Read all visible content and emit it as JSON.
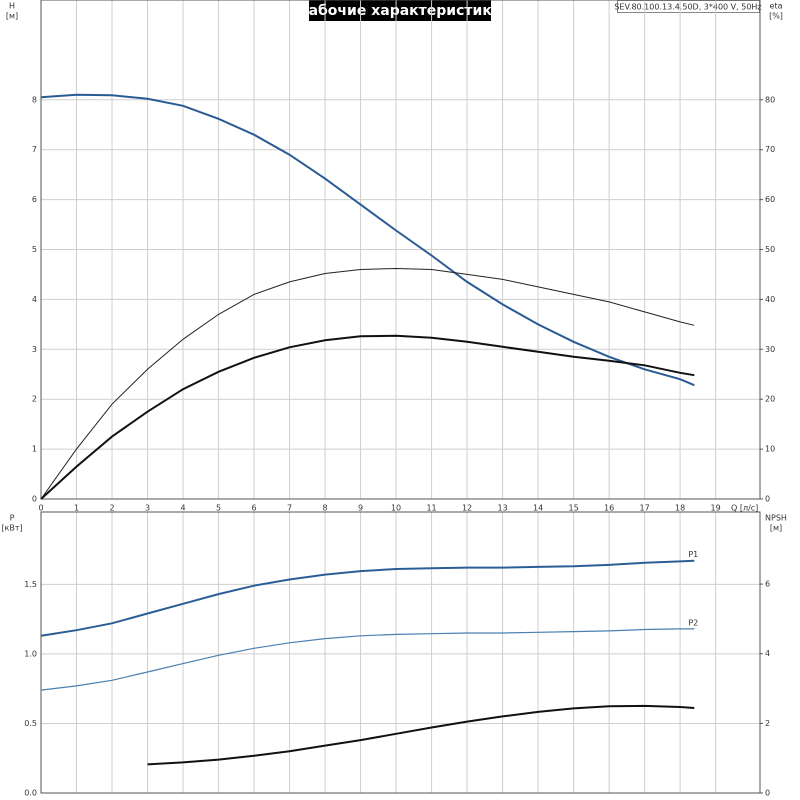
{
  "chart_data": [
    {
      "type": "line",
      "title": "Рабочие характеристики",
      "annotation": "SEV.80.100.13.4.50D, 3*400 V, 50Hz",
      "xlabel": "Q [л/с]",
      "ylabel": "H",
      "ylabel_unit": "[м]",
      "y2label": "eta",
      "y2label_unit": "[%]",
      "xlim": [
        0,
        20.25
      ],
      "xticks": [
        0,
        1,
        2,
        3,
        4,
        5,
        6,
        7,
        8,
        9,
        10,
        11,
        12,
        13,
        14,
        15,
        16,
        17,
        18,
        19
      ],
      "ylim": [
        0,
        10
      ],
      "yticks": [
        0,
        1,
        2,
        3,
        4,
        5,
        6,
        7,
        8
      ],
      "y2lim": [
        0,
        100
      ],
      "y2ticks": [
        0,
        10,
        20,
        30,
        40,
        50,
        60,
        70,
        80
      ],
      "grid": true,
      "x": [
        0,
        1,
        2,
        3,
        4,
        5,
        6,
        7,
        8,
        9,
        10,
        11,
        12,
        13,
        14,
        15,
        16,
        17,
        18,
        18.4
      ],
      "series": [
        {
          "color": "#2a5b94",
          "line_width": 2,
          "values": [
            8.05,
            8.1,
            8.09,
            8.02,
            7.88,
            7.62,
            7.3,
            6.9,
            6.42,
            5.9,
            5.38,
            4.88,
            4.35,
            3.9,
            3.5,
            3.15,
            2.85,
            2.6,
            2.4,
            2.28
          ]
        },
        {
          "color": "#222222",
          "line_width": 1,
          "axis": "y2",
          "values": [
            0,
            10,
            19,
            26,
            32,
            37,
            41,
            43.5,
            45.2,
            46,
            46.2,
            46,
            45,
            44,
            42.5,
            41,
            39.5,
            37.5,
            35.5,
            34.8
          ]
        },
        {
          "color": "#111111",
          "line_width": 2,
          "axis": "y2",
          "values": [
            0,
            6.5,
            12.5,
            17.5,
            22,
            25.5,
            28.3,
            30.4,
            31.8,
            32.6,
            32.7,
            32.3,
            31.5,
            30.5,
            29.5,
            28.5,
            27.7,
            26.8,
            25.3,
            24.8
          ]
        }
      ]
    },
    {
      "type": "line",
      "ylabel": "P",
      "ylabel_unit": "[кВт]",
      "y2label": "NPSH",
      "y2label_unit": "[м]",
      "xlim": [
        0,
        20.25
      ],
      "ylim": [
        0,
        2.02
      ],
      "yticks": [
        {
          "value": 0,
          "label": "0.0"
        },
        0.5,
        {
          "value": 1,
          "label": "1.0"
        },
        1.5
      ],
      "y2lim": [
        0,
        8.07
      ],
      "y2ticks": [
        0,
        2,
        4,
        6
      ],
      "grid": true,
      "x": [
        0,
        1,
        2,
        3,
        4,
        5,
        6,
        7,
        8,
        9,
        10,
        11,
        12,
        13,
        14,
        15,
        16,
        17,
        18,
        18.4
      ],
      "series": [
        {
          "name": "P1",
          "color": "#2b5e97",
          "line_width": 2,
          "values": [
            1.13,
            1.17,
            1.22,
            1.29,
            1.36,
            1.43,
            1.49,
            1.535,
            1.57,
            1.595,
            1.61,
            1.615,
            1.62,
            1.62,
            1.625,
            1.63,
            1.64,
            1.655,
            1.665,
            1.67
          ]
        },
        {
          "name": "P2",
          "color": "#4a7fb0",
          "line_width": 1.2,
          "values": [
            0.74,
            0.77,
            0.81,
            0.87,
            0.93,
            0.99,
            1.04,
            1.08,
            1.11,
            1.13,
            1.14,
            1.145,
            1.15,
            1.15,
            1.155,
            1.16,
            1.165,
            1.175,
            1.18,
            1.18
          ]
        },
        {
          "color": "#111111",
          "line_width": 2,
          "axis": "y2",
          "values": [
            null,
            null,
            null,
            0.82,
            0.88,
            0.96,
            1.07,
            1.2,
            1.36,
            1.52,
            1.7,
            1.88,
            2.05,
            2.2,
            2.33,
            2.43,
            2.49,
            2.5,
            2.47,
            2.44
          ]
        }
      ]
    }
  ]
}
